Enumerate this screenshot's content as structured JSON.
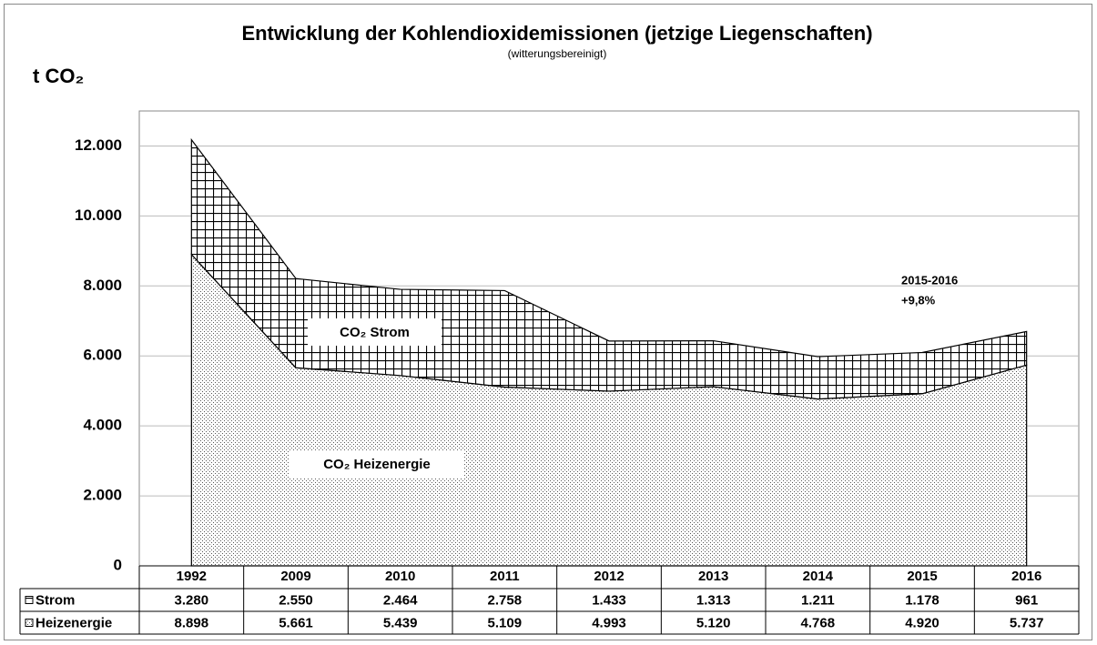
{
  "chart_data": {
    "type": "stacked_area",
    "title": "Entwicklung der Kohlendioxidemissionen (jetzige Liegenschaften)",
    "subtitle": "(witterungsbereinigt)",
    "y_label": "t CO₂",
    "categories": [
      "1992",
      "2009",
      "2010",
      "2011",
      "2012",
      "2013",
      "2014",
      "2015",
      "2016"
    ],
    "series": [
      {
        "name": "Strom",
        "color": "#000000",
        "pattern": "grid",
        "values": [
          3280,
          2550,
          2464,
          2758,
          1433,
          1313,
          1211,
          1178,
          961
        ],
        "value_labels": [
          "3.280",
          "2.550",
          "2.464",
          "2.758",
          "1.433",
          "1.313",
          "1.211",
          "1.178",
          "961"
        ]
      },
      {
        "name": "Heizenergie",
        "color": "#000000",
        "pattern": "dots",
        "values": [
          8898,
          5661,
          5439,
          5109,
          4993,
          5120,
          4768,
          4920,
          5737
        ],
        "value_labels": [
          "8.898",
          "5.661",
          "5.439",
          "5.109",
          "4.993",
          "5.120",
          "4.768",
          "4.920",
          "5.737"
        ]
      }
    ],
    "annotations": [
      "CO₂ Strom",
      "CO₂ Heizenergie",
      "2015-2016",
      "+9,8%"
    ],
    "ylim": [
      0,
      13000
    ],
    "yticks": [
      0,
      {
        "value": 2000,
        "label": "2.000"
      },
      {
        "value": 4000,
        "label": "4.000"
      },
      {
        "value": 6000,
        "label": "6.000"
      },
      {
        "value": 8000,
        "label": "8.000"
      },
      {
        "value": 10000,
        "label": "10.000"
      },
      {
        "value": 12000,
        "label": "12.000"
      }
    ],
    "grid": true
  }
}
